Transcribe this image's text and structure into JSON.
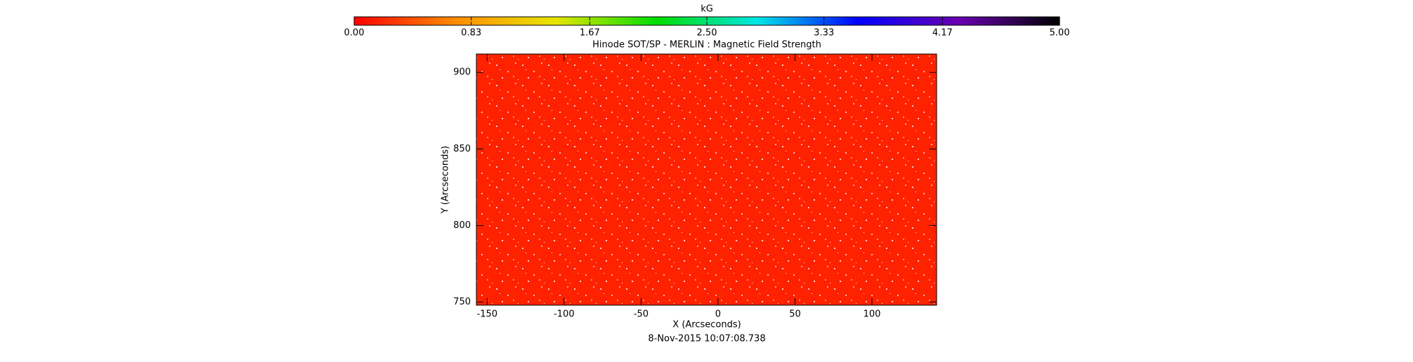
{
  "chart_data": {
    "type": "image",
    "title": "Hinode SOT/SP - MERLIN : Magnetic Field Strength",
    "x_label": "X (Arcseconds)",
    "y_label": "Y (Arcseconds)",
    "date": "8-Nov-2015 10:07:08.738",
    "color": "#ff2200",
    "xlim": [
      -157,
      142
    ],
    "xticks": [
      -150,
      -100,
      -50,
      0,
      50,
      100
    ],
    "ylim": [
      748,
      912
    ],
    "yticks": [
      750,
      800,
      850,
      900
    ],
    "colorbar": {
      "label": "kG",
      "lim": [
        0,
        5
      ],
      "ticks": [
        {
          "value": 0,
          "label": "0.00"
        },
        {
          "value": 0.83,
          "label": "0.83"
        },
        {
          "value": 1.67,
          "label": "1.67"
        },
        {
          "value": 2.5,
          "label": "2.50"
        },
        {
          "value": 3.33,
          "label": "3.33"
        },
        {
          "value": 4.17,
          "label": "4.17"
        },
        {
          "value": 5,
          "label": "5.00"
        }
      ],
      "colors": [
        "#ff0000",
        "#ff8c00",
        "#e6e600",
        "#00dd00",
        "#00e6e6",
        "#0000ff",
        "#6a00b0",
        "#000000"
      ]
    }
  }
}
